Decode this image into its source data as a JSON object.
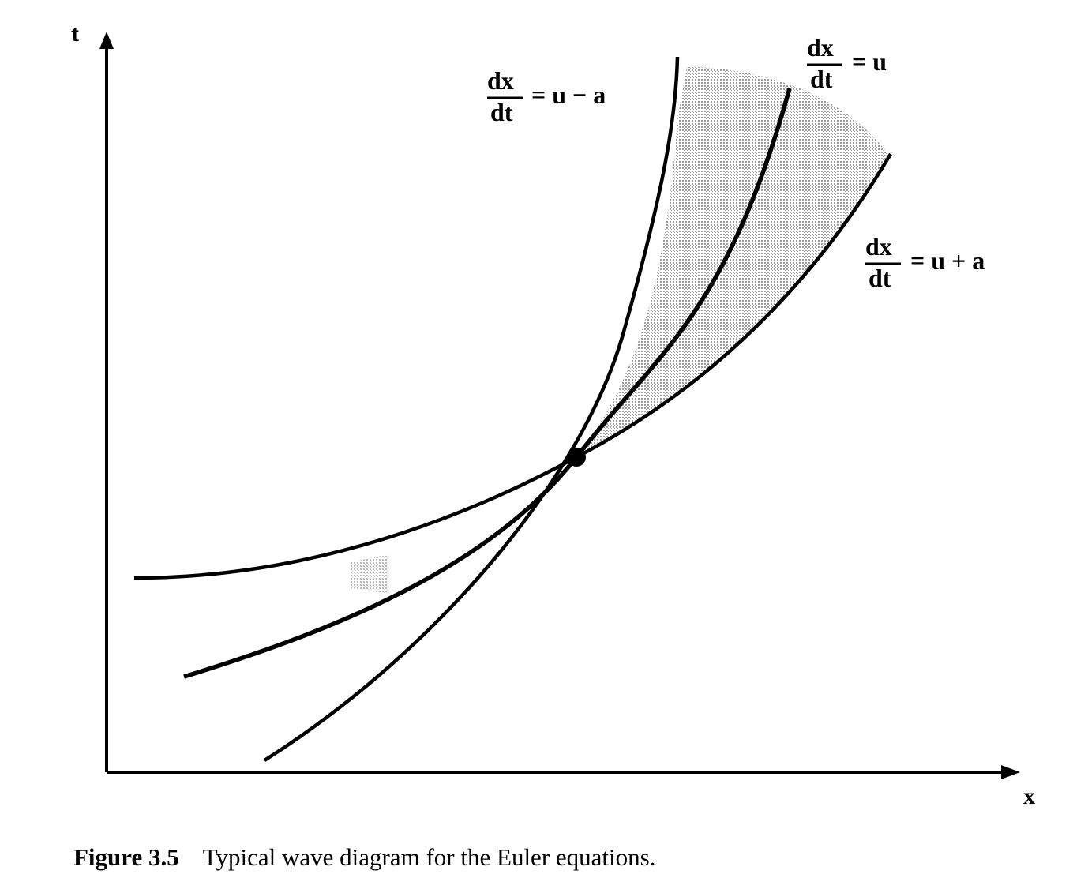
{
  "axes": {
    "x_label": "x",
    "t_label": "t"
  },
  "equations": {
    "left_numerator": "dx",
    "left_denominator": "dt",
    "left_rhs": "= u − a",
    "middle_numerator": "dx",
    "middle_denominator": "dt",
    "middle_rhs": "= u",
    "right_numerator": "dx",
    "right_denominator": "dt",
    "right_rhs": "= u + a"
  },
  "caption": {
    "label": "Figure 3.5",
    "text": "Typical wave diagram for the Euler equations."
  },
  "colors": {
    "ink": "#000000",
    "shading": "#c8c8c8"
  }
}
